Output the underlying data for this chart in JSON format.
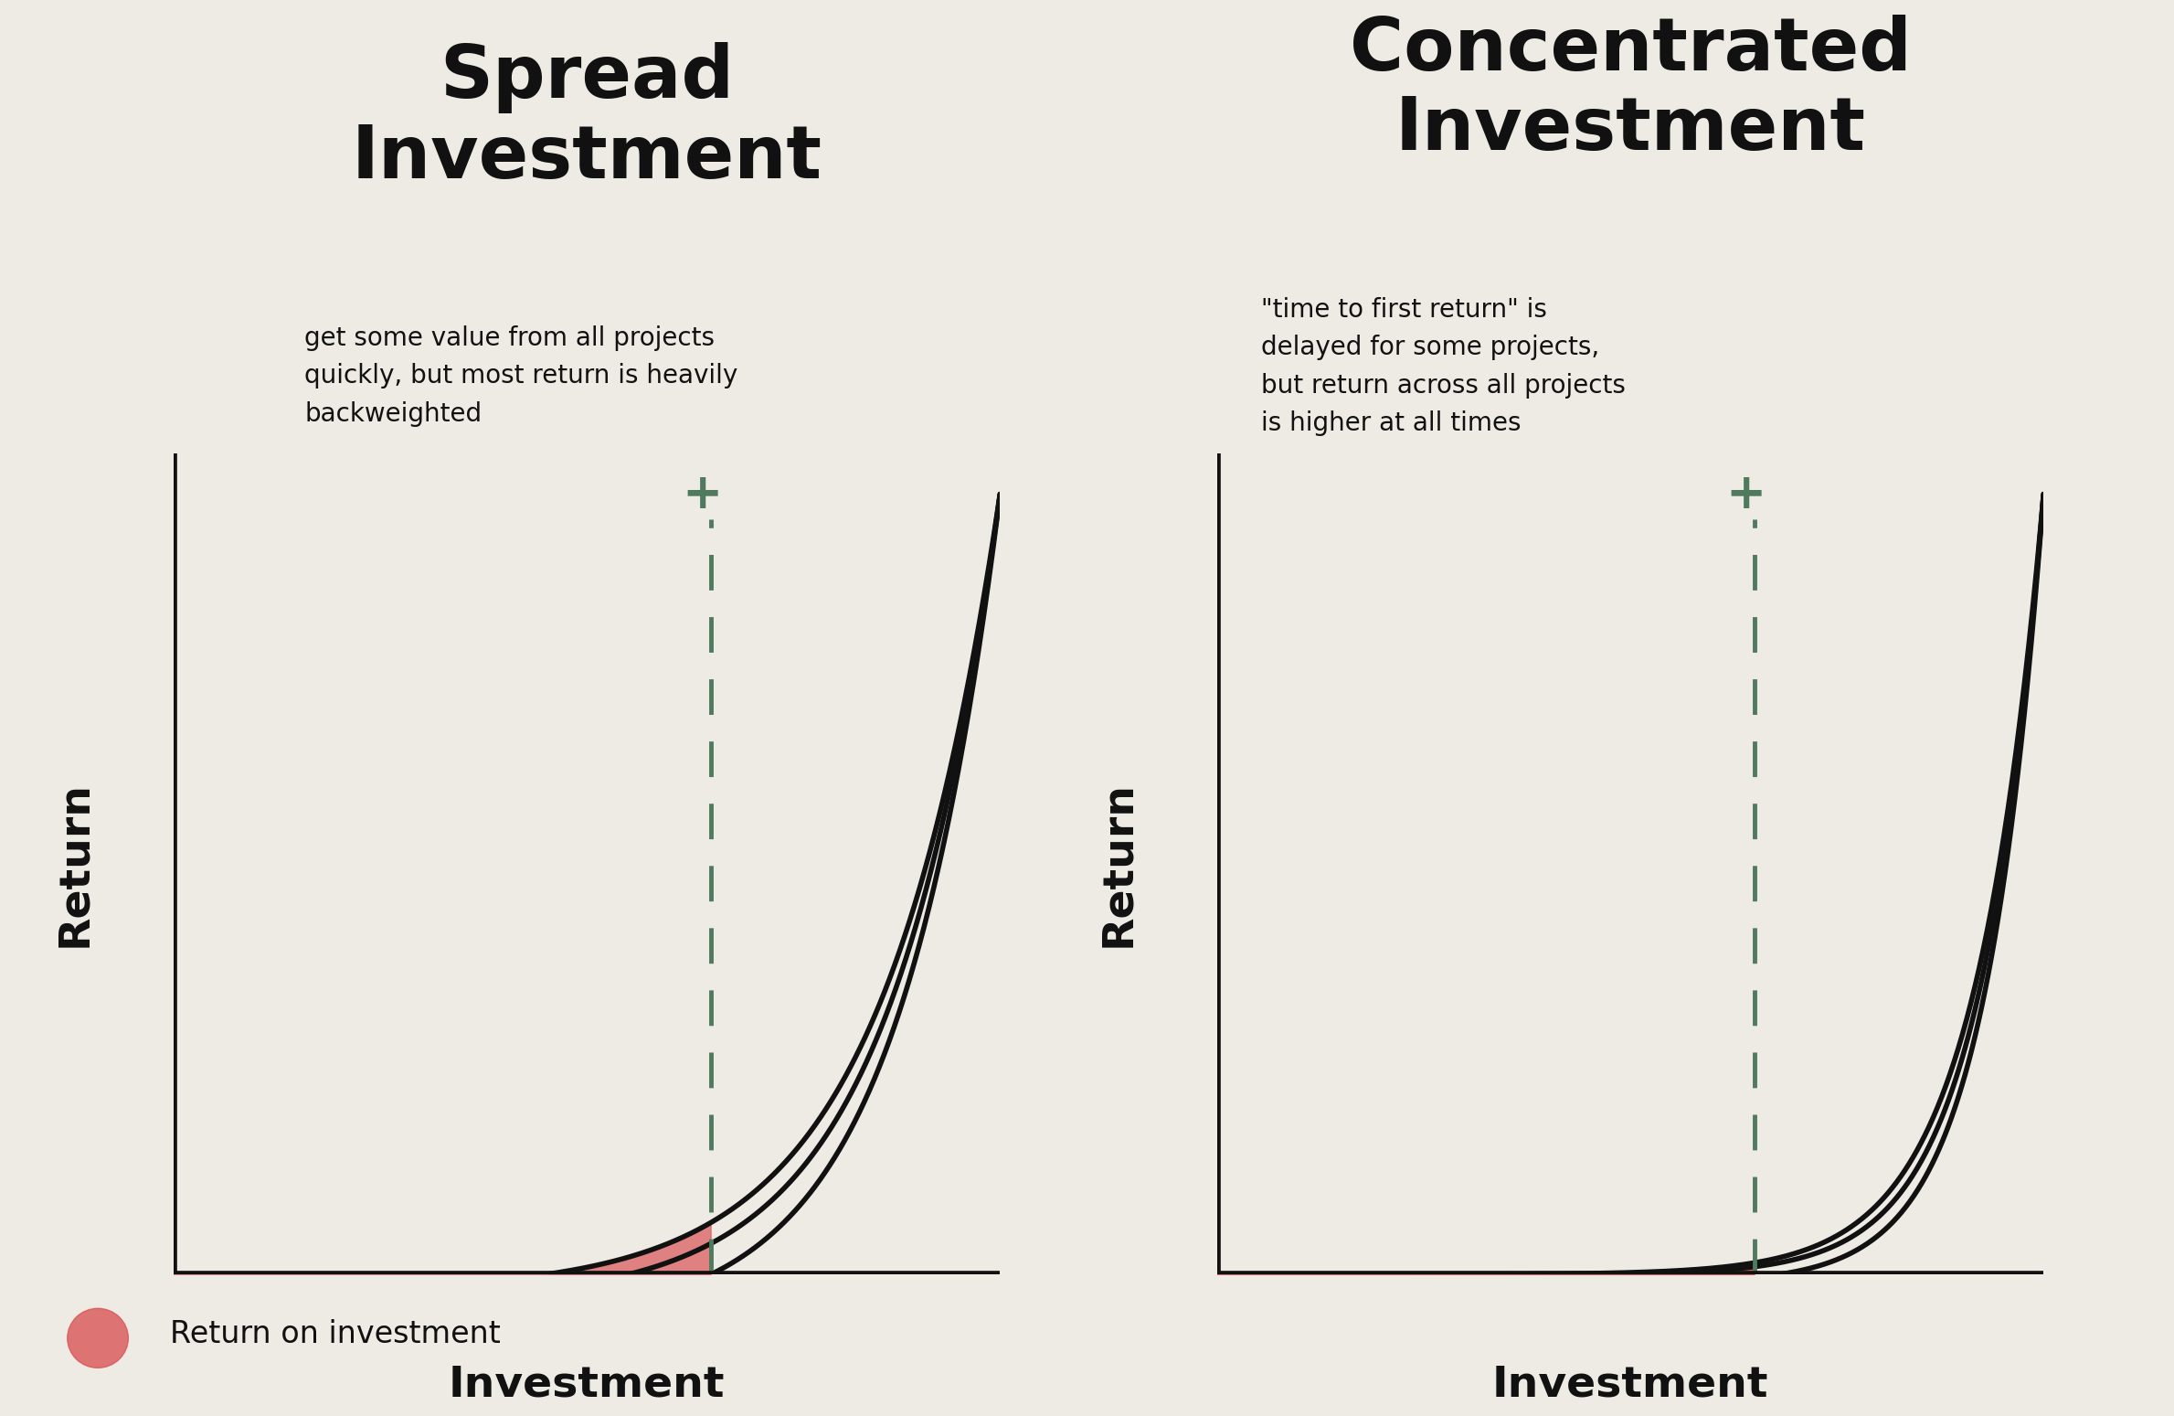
{
  "bg_color": "#eeebe5",
  "title_left": "Spread\nInvestment",
  "title_right": "Concentrated\nInvestment",
  "annotation_left": "get some value from all projects\nquickly, but most return is heavily\nbackweighted",
  "annotation_right": "\"time to first return\" is\ndelayed for some projects,\nbut return across all projects\nis higher at all times",
  "xlabel": "Investment",
  "ylabel": "Return",
  "legend_label": "Return on investment",
  "curve_color": "#111111",
  "red_fill_color": "#d95555",
  "red_fill_alpha": 0.7,
  "dashed_line_color": "#4f7a5e",
  "axis_color": "#111111",
  "title_fontsize": 58,
  "annotation_fontsize": 20,
  "ylabel_fontsize": 34,
  "xlabel_fontsize": 34,
  "legend_fontsize": 24
}
